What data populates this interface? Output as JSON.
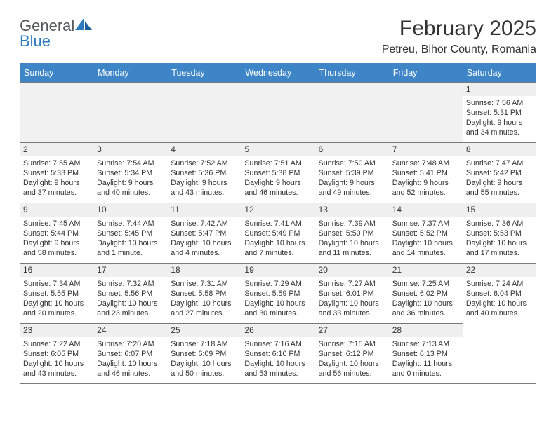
{
  "brand": {
    "name_part1": "General",
    "name_part2": "Blue"
  },
  "title": "February 2025",
  "location": "Petreu, Bihor County, Romania",
  "header_bg": "#3d85c6",
  "header_fg": "#ffffff",
  "daynum_bg": "#efefef",
  "border_color": "#7a7a7a",
  "text_color": "#333333",
  "blank_bg": "#f1f1f1",
  "font_family": "Arial, Helvetica, sans-serif",
  "month_title_fontsize": 30,
  "location_fontsize": 16,
  "weekday_fontsize": 12.5,
  "daynum_fontsize": 12,
  "detail_fontsize": 10.7,
  "weekdays": [
    "Sunday",
    "Monday",
    "Tuesday",
    "Wednesday",
    "Thursday",
    "Friday",
    "Saturday"
  ],
  "leading_blanks": 6,
  "days": [
    {
      "n": "1",
      "sunrise": "7:56 AM",
      "sunset": "5:31 PM",
      "daylight": "9 hours and 34 minutes."
    },
    {
      "n": "2",
      "sunrise": "7:55 AM",
      "sunset": "5:33 PM",
      "daylight": "9 hours and 37 minutes."
    },
    {
      "n": "3",
      "sunrise": "7:54 AM",
      "sunset": "5:34 PM",
      "daylight": "9 hours and 40 minutes."
    },
    {
      "n": "4",
      "sunrise": "7:52 AM",
      "sunset": "5:36 PM",
      "daylight": "9 hours and 43 minutes."
    },
    {
      "n": "5",
      "sunrise": "7:51 AM",
      "sunset": "5:38 PM",
      "daylight": "9 hours and 46 minutes."
    },
    {
      "n": "6",
      "sunrise": "7:50 AM",
      "sunset": "5:39 PM",
      "daylight": "9 hours and 49 minutes."
    },
    {
      "n": "7",
      "sunrise": "7:48 AM",
      "sunset": "5:41 PM",
      "daylight": "9 hours and 52 minutes."
    },
    {
      "n": "8",
      "sunrise": "7:47 AM",
      "sunset": "5:42 PM",
      "daylight": "9 hours and 55 minutes."
    },
    {
      "n": "9",
      "sunrise": "7:45 AM",
      "sunset": "5:44 PM",
      "daylight": "9 hours and 58 minutes."
    },
    {
      "n": "10",
      "sunrise": "7:44 AM",
      "sunset": "5:45 PM",
      "daylight": "10 hours and 1 minute."
    },
    {
      "n": "11",
      "sunrise": "7:42 AM",
      "sunset": "5:47 PM",
      "daylight": "10 hours and 4 minutes."
    },
    {
      "n": "12",
      "sunrise": "7:41 AM",
      "sunset": "5:49 PM",
      "daylight": "10 hours and 7 minutes."
    },
    {
      "n": "13",
      "sunrise": "7:39 AM",
      "sunset": "5:50 PM",
      "daylight": "10 hours and 11 minutes."
    },
    {
      "n": "14",
      "sunrise": "7:37 AM",
      "sunset": "5:52 PM",
      "daylight": "10 hours and 14 minutes."
    },
    {
      "n": "15",
      "sunrise": "7:36 AM",
      "sunset": "5:53 PM",
      "daylight": "10 hours and 17 minutes."
    },
    {
      "n": "16",
      "sunrise": "7:34 AM",
      "sunset": "5:55 PM",
      "daylight": "10 hours and 20 minutes."
    },
    {
      "n": "17",
      "sunrise": "7:32 AM",
      "sunset": "5:56 PM",
      "daylight": "10 hours and 23 minutes."
    },
    {
      "n": "18",
      "sunrise": "7:31 AM",
      "sunset": "5:58 PM",
      "daylight": "10 hours and 27 minutes."
    },
    {
      "n": "19",
      "sunrise": "7:29 AM",
      "sunset": "5:59 PM",
      "daylight": "10 hours and 30 minutes."
    },
    {
      "n": "20",
      "sunrise": "7:27 AM",
      "sunset": "6:01 PM",
      "daylight": "10 hours and 33 minutes."
    },
    {
      "n": "21",
      "sunrise": "7:25 AM",
      "sunset": "6:02 PM",
      "daylight": "10 hours and 36 minutes."
    },
    {
      "n": "22",
      "sunrise": "7:24 AM",
      "sunset": "6:04 PM",
      "daylight": "10 hours and 40 minutes."
    },
    {
      "n": "23",
      "sunrise": "7:22 AM",
      "sunset": "6:05 PM",
      "daylight": "10 hours and 43 minutes."
    },
    {
      "n": "24",
      "sunrise": "7:20 AM",
      "sunset": "6:07 PM",
      "daylight": "10 hours and 46 minutes."
    },
    {
      "n": "25",
      "sunrise": "7:18 AM",
      "sunset": "6:09 PM",
      "daylight": "10 hours and 50 minutes."
    },
    {
      "n": "26",
      "sunrise": "7:16 AM",
      "sunset": "6:10 PM",
      "daylight": "10 hours and 53 minutes."
    },
    {
      "n": "27",
      "sunrise": "7:15 AM",
      "sunset": "6:12 PM",
      "daylight": "10 hours and 56 minutes."
    },
    {
      "n": "28",
      "sunrise": "7:13 AM",
      "sunset": "6:13 PM",
      "daylight": "11 hours and 0 minutes."
    }
  ]
}
